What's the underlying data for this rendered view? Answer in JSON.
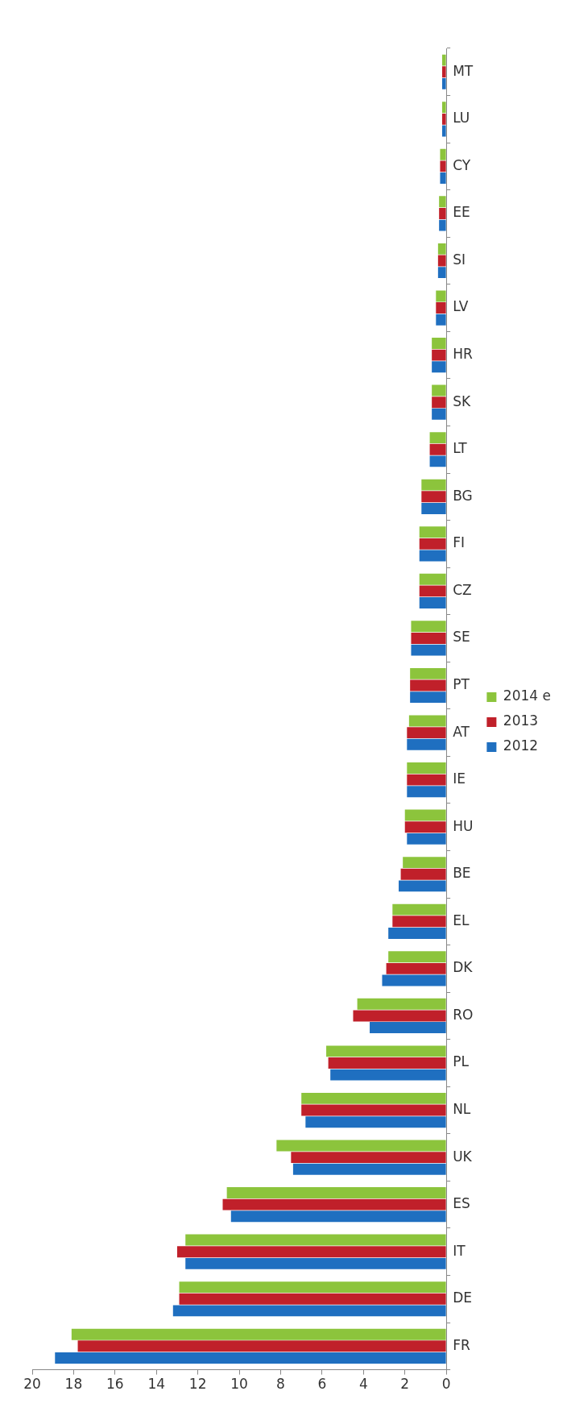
{
  "chart_data": {
    "type": "bar",
    "orientation": "horizontal",
    "categories": [
      "MT",
      "LU",
      "CY",
      "EE",
      "SI",
      "LV",
      "HR",
      "SK",
      "LT",
      "BG",
      "FI",
      "CZ",
      "SE",
      "PT",
      "AT",
      "IE",
      "HU",
      "BE",
      "EL",
      "DK",
      "RO",
      "PL",
      "NL",
      "UK",
      "ES",
      "IT",
      "DE",
      "FR"
    ],
    "series": [
      {
        "name": "2014 e",
        "color": "#8cc43c",
        "values": [
          0.2,
          0.2,
          0.3,
          0.35,
          0.4,
          0.5,
          0.7,
          0.7,
          0.8,
          1.2,
          1.3,
          1.3,
          1.7,
          1.75,
          1.8,
          1.9,
          2.0,
          2.1,
          2.6,
          2.8,
          4.3,
          5.8,
          7.0,
          8.2,
          10.6,
          12.6,
          12.9,
          18.1
        ]
      },
      {
        "name": "2013",
        "color": "#c0202a",
        "values": [
          0.2,
          0.2,
          0.3,
          0.35,
          0.4,
          0.5,
          0.7,
          0.7,
          0.8,
          1.2,
          1.3,
          1.3,
          1.7,
          1.75,
          1.9,
          1.9,
          2.0,
          2.2,
          2.6,
          2.9,
          4.5,
          5.7,
          7.0,
          7.5,
          10.8,
          13.0,
          12.9,
          17.8
        ]
      },
      {
        "name": "2012",
        "color": "#1f6fc0",
        "values": [
          0.2,
          0.2,
          0.3,
          0.35,
          0.4,
          0.5,
          0.7,
          0.7,
          0.8,
          1.2,
          1.3,
          1.3,
          1.7,
          1.75,
          1.9,
          1.9,
          1.9,
          2.3,
          2.8,
          3.1,
          3.7,
          5.6,
          6.8,
          7.4,
          10.4,
          12.6,
          13.2,
          18.9
        ]
      }
    ],
    "xlim": [
      20,
      0
    ],
    "xticks": [
      20,
      18,
      16,
      14,
      12,
      10,
      8,
      6,
      4,
      2,
      0
    ],
    "grid": false,
    "legend": "right"
  }
}
